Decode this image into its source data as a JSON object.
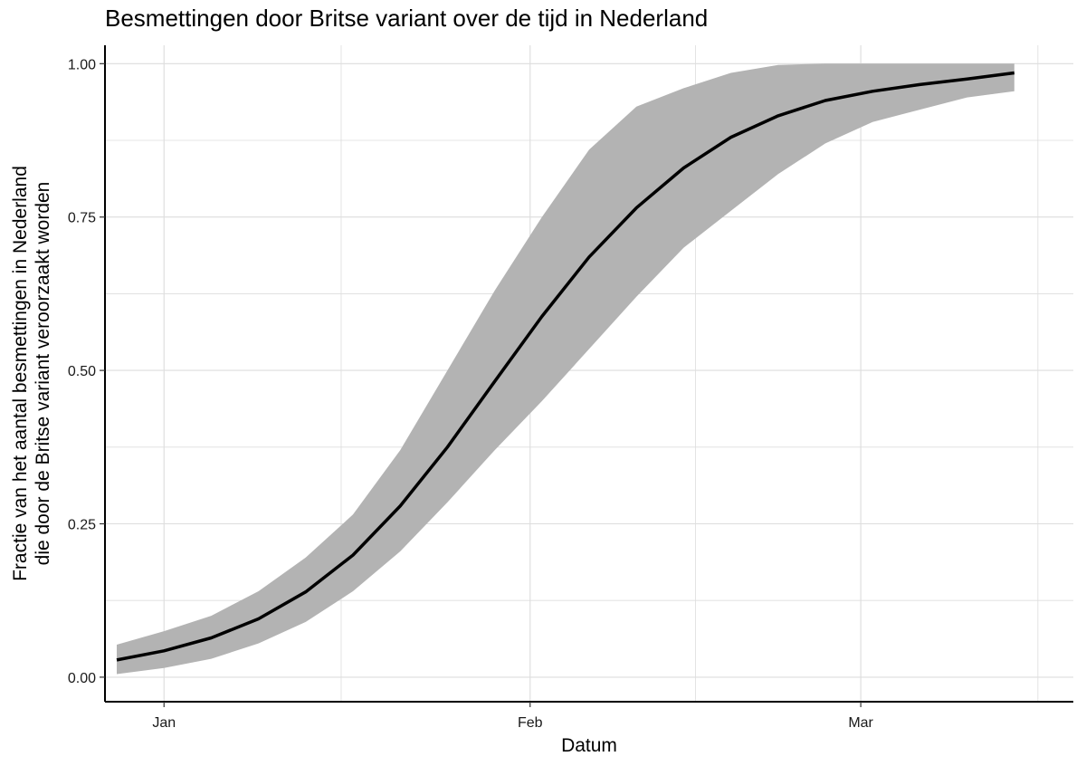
{
  "chart_data": {
    "type": "line",
    "title": "Besmettingen door Britse variant over de tijd in Nederland",
    "xlabel": "Datum",
    "ylabel_lines": [
      "Fractie van het aantal besmettingen in Nederland",
      "die door de Britse variant veroorzaakt worden"
    ],
    "x_type": "date",
    "xlim": [
      "2020-12-27",
      "2021-03-19"
    ],
    "ylim": [
      -0.04,
      1.03
    ],
    "x_ticks": [
      {
        "date": "2021-01-01",
        "label": "Jan"
      },
      {
        "date": "2021-02-01",
        "label": "Feb"
      },
      {
        "date": "2021-03-01",
        "label": "Mar"
      }
    ],
    "x_minor_ticks": [
      "2021-01-16",
      "2021-02-15",
      "2021-03-16"
    ],
    "y_ticks": [
      {
        "value": 0.0,
        "label": "0.00"
      },
      {
        "value": 0.25,
        "label": "0.25"
      },
      {
        "value": 0.5,
        "label": "0.50"
      },
      {
        "value": 0.75,
        "label": "0.75"
      },
      {
        "value": 1.0,
        "label": "1.00"
      }
    ],
    "y_minor_ticks": [
      0.125,
      0.375,
      0.625,
      0.875
    ],
    "grid": true,
    "legend": "none",
    "colors": {
      "line": "#000000",
      "band": "#b3b3b3",
      "grid": "#dddddd",
      "axis": "#000000"
    },
    "series": [
      {
        "x": [
          "2020-12-28",
          "2021-01-01",
          "2021-01-05",
          "2021-01-09",
          "2021-01-13",
          "2021-01-17",
          "2021-01-21",
          "2021-01-25",
          "2021-01-29",
          "2021-02-02",
          "2021-02-06",
          "2021-02-10",
          "2021-02-14",
          "2021-02-18",
          "2021-02-22",
          "2021-02-26",
          "2021-03-02",
          "2021-03-06",
          "2021-03-10",
          "2021-03-14"
        ],
        "y": [
          0.028,
          0.043,
          0.064,
          0.095,
          0.139,
          0.199,
          0.279,
          0.375,
          0.482,
          0.588,
          0.685,
          0.765,
          0.83,
          0.88,
          0.915,
          0.94,
          0.955,
          0.966,
          0.975,
          0.985
        ],
        "lower": [
          0.005,
          0.015,
          0.03,
          0.055,
          0.09,
          0.14,
          0.205,
          0.285,
          0.37,
          0.45,
          0.535,
          0.62,
          0.7,
          0.76,
          0.82,
          0.87,
          0.905,
          0.925,
          0.945,
          0.955
        ],
        "upper": [
          0.053,
          0.075,
          0.1,
          0.14,
          0.195,
          0.265,
          0.37,
          0.5,
          0.63,
          0.75,
          0.86,
          0.93,
          0.96,
          0.985,
          0.998,
          1.0,
          1.0,
          1.0,
          1.0,
          1.0
        ]
      }
    ]
  }
}
